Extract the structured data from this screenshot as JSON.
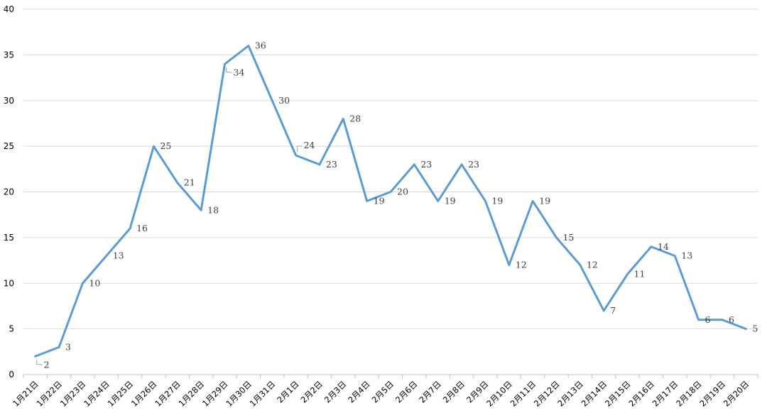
{
  "chart_data": {
    "type": "line",
    "title": "",
    "xlabel": "",
    "ylabel": "",
    "ylim": [
      0,
      40
    ],
    "yticks": [
      0,
      5,
      10,
      15,
      20,
      25,
      30,
      35,
      40
    ],
    "grid": true,
    "legend": "none",
    "color": "#5b9bd5",
    "categories": [
      "1月21日",
      "1月22日",
      "1月23日",
      "1月24日",
      "1月25日",
      "1月26日",
      "1月27日",
      "1月28日",
      "1月29日",
      "1月30日",
      "1月31日",
      "2月1日",
      "2月2日",
      "2月3日",
      "2月4日",
      "2月5日",
      "2月6日",
      "2月7日",
      "2月8日",
      "2月9日",
      "2月10日",
      "2月11日",
      "2月12日",
      "2月13日",
      "2月14日",
      "2月15日",
      "2月16日",
      "2月17日",
      "2月18日",
      "2月19日",
      "2月20日"
    ],
    "series": [
      {
        "values": [
          2,
          3,
          10,
          13,
          16,
          25,
          21,
          18,
          34,
          36,
          30,
          24,
          23,
          28,
          19,
          20,
          23,
          19,
          23,
          19,
          12,
          19,
          15,
          12,
          7,
          11,
          14,
          13,
          6,
          6,
          5
        ]
      }
    ]
  }
}
